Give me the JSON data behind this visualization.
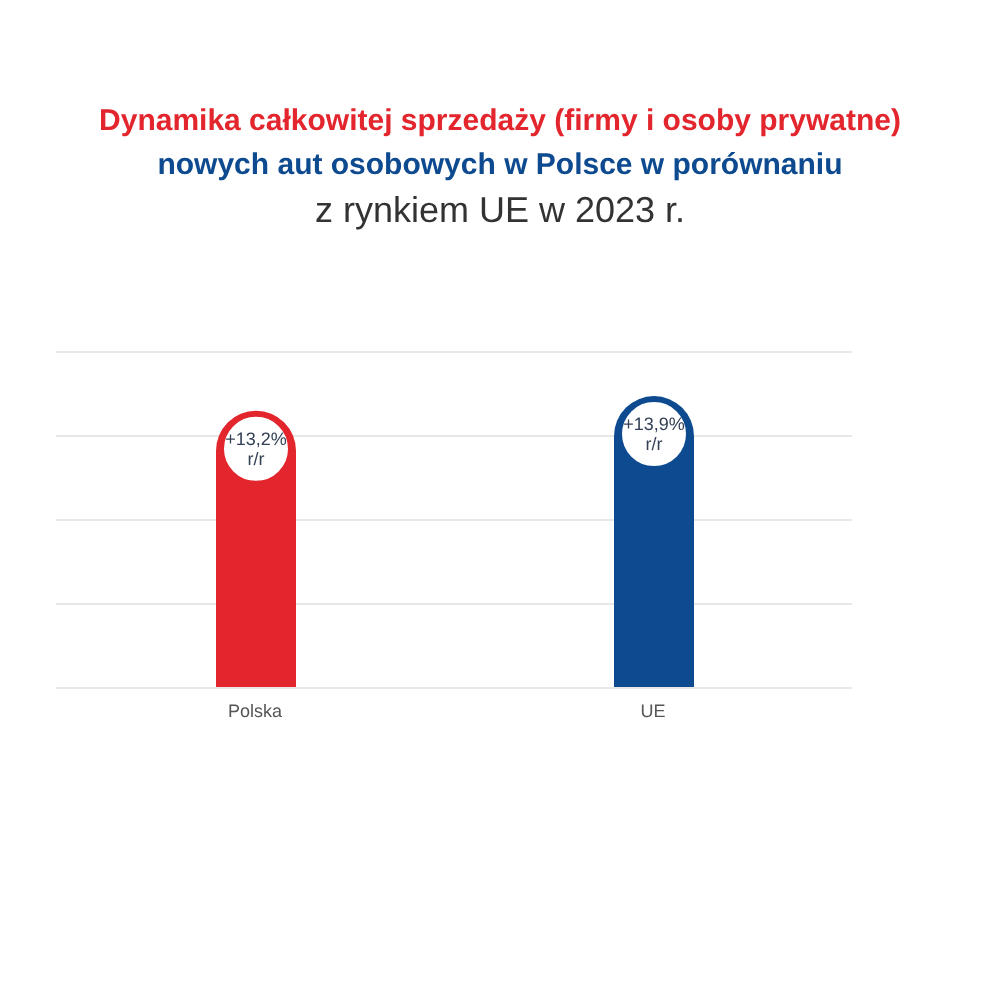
{
  "chart_data": {
    "type": "bar",
    "title": "Dynamika całkowitej sprzedaży (firmy i osoby prywatne) nowych aut osobowych w Polsce w porównaniu",
    "subtitle": "z rynkiem UE w 2023 r.",
    "categories": [
      "Polska",
      "UE"
    ],
    "values": [
      13.2,
      13.9
    ],
    "colors": [
      "#e3262d",
      "#0e4a8f"
    ],
    "value_labels": [
      "+13,2% r/r",
      "+13,9% r/r"
    ],
    "tick_labels": "x",
    "grid": "y",
    "legend": false
  }
}
